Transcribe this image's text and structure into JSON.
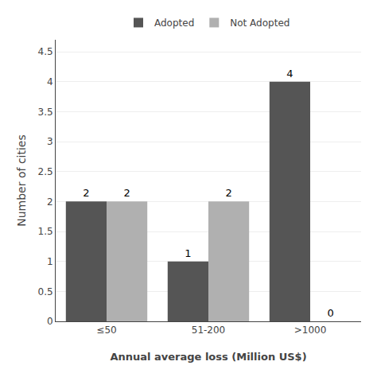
{
  "chart_data": {
    "type": "bar",
    "categories": [
      "≤50",
      "51-200",
      ">1000"
    ],
    "series": [
      {
        "name": "Adopted",
        "color": "#555555",
        "values": [
          2,
          1,
          4
        ]
      },
      {
        "name": "Not Adopted",
        "color": "#b0b0b0",
        "values": [
          2,
          2,
          0
        ]
      }
    ],
    "xlabel": "Annual average loss (Million US$)",
    "ylabel": "Number of cities",
    "ylim": [
      0,
      4.7
    ],
    "yticks": [
      0,
      0.5,
      1,
      1.5,
      2,
      2.5,
      3,
      3.5,
      4,
      4.5
    ],
    "grid": true,
    "data_labels": true,
    "legend": "top"
  }
}
